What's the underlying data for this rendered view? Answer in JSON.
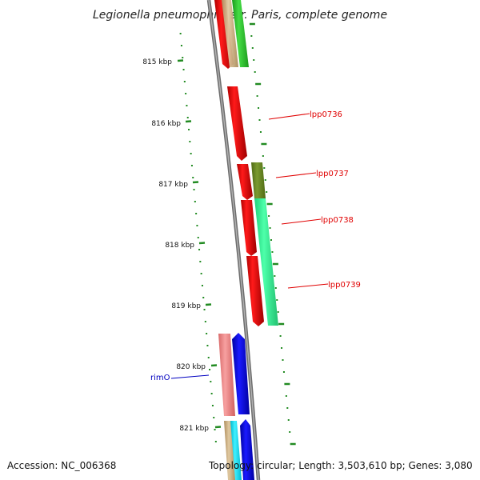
{
  "title": "Legionella pneumophila str. Paris, complete genome",
  "footer": {
    "accession": "Accession: NC_006368",
    "topology": "Topology: circular; Length: 3,503,610 bp; Genes: 3,080"
  },
  "ticks": [
    {
      "label": "815 kbp",
      "kbp": 815
    },
    {
      "label": "816 kbp",
      "kbp": 816
    },
    {
      "label": "817 kbp",
      "kbp": 817
    },
    {
      "label": "818 kbp",
      "kbp": 818
    },
    {
      "label": "819 kbp",
      "kbp": 819
    },
    {
      "label": "820 kbp",
      "kbp": 820
    },
    {
      "label": "821 kbp",
      "kbp": 821
    }
  ],
  "gene_labels": [
    {
      "name": "lpp0736",
      "color": "#e00000"
    },
    {
      "name": "lpp0737",
      "color": "#e00000"
    },
    {
      "name": "lpp0738",
      "color": "#e00000"
    },
    {
      "name": "lpp0739",
      "color": "#e00000"
    },
    {
      "name": "rimO",
      "color": "#0000c0"
    }
  ],
  "colors": {
    "red_cds": "#ff0000",
    "blue_cds": "#0000ff",
    "seafoam_cds": "#33ff99",
    "olive_cds": "#6b8e23",
    "pink_cds": "#f08080",
    "tan_cds": "#d2b48c",
    "green_cds": "#33cc33",
    "cyan_cds": "#00e5ff",
    "backbone": "#888888",
    "tick_green": "#228B22"
  }
}
